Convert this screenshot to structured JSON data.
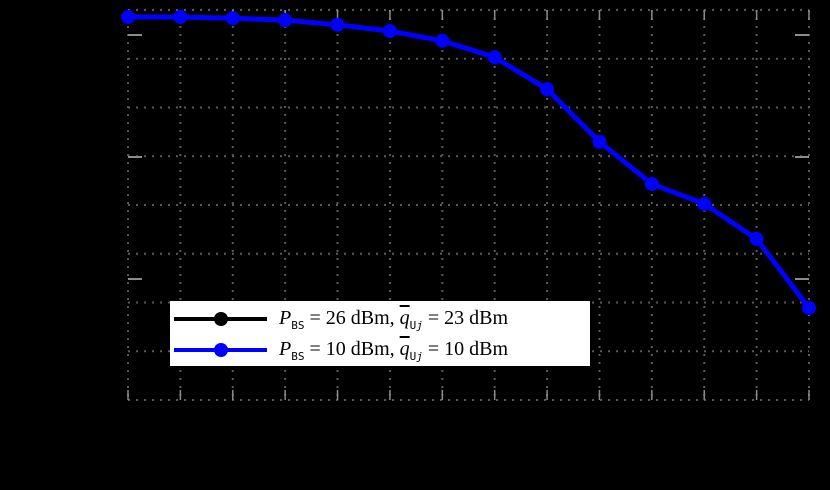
{
  "chart_data": {
    "type": "line",
    "title": "",
    "xlabel": "",
    "ylabel": "",
    "x_tick_labels_visible": false,
    "y_tick_labels_visible": false,
    "x": [
      1,
      2,
      3,
      4,
      5,
      6,
      7,
      8,
      9,
      10,
      11,
      12,
      13,
      14
    ],
    "xlim": [
      1,
      14
    ],
    "ylim_normalized": [
      0,
      1
    ],
    "grid": true,
    "grid_style": "dotted",
    "legend_position": "lower-left",
    "series": [
      {
        "name": "P_BS = 26 dBm, q̄_Uj = 23 dBm",
        "color": "#000000",
        "marker": "circle",
        "values_normalized": [
          0.982,
          0.982,
          0.979,
          0.974,
          0.962,
          0.946,
          0.921,
          0.879,
          0.797,
          0.662,
          0.554,
          0.503,
          0.413,
          0.236
        ]
      },
      {
        "name": "P_BS = 10 dBm, q̄_Uj = 10 dBm",
        "color": "#0000ff",
        "marker": "circle",
        "values_normalized": [
          0.982,
          0.982,
          0.979,
          0.974,
          0.962,
          0.946,
          0.921,
          0.879,
          0.797,
          0.662,
          0.554,
          0.503,
          0.413,
          0.236
        ]
      }
    ]
  },
  "legend": {
    "items": [
      {
        "p_symbol": "P",
        "p_sub": "BS",
        "p_value": "= 26 dBm,",
        "q_symbol": "q",
        "q_sub": "U",
        "q_subsub": "j",
        "q_value": "= 23 dBm",
        "color": "#000000"
      },
      {
        "p_symbol": "P",
        "p_sub": "BS",
        "p_value": "= 10 dBm,",
        "q_symbol": "q",
        "q_sub": "U",
        "q_subsub": "j",
        "q_value": "= 10 dBm",
        "color": "#0000ff"
      }
    ]
  },
  "colors": {
    "background": "#000000",
    "grid": "#5a5a5a",
    "tick": "#8c8c8c",
    "series_blue": "#0000ff",
    "series_black": "#000000"
  }
}
